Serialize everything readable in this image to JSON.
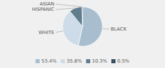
{
  "chart_data": {
    "type": "pie",
    "categories": [
      "BLACK",
      "WHITE",
      "HISPANIC",
      "ASIAN"
    ],
    "values": [
      53.4,
      35.8,
      10.3,
      0.5
    ],
    "value_labels": [
      "53.4%",
      "35.8%",
      "10.3%",
      "0.5%"
    ],
    "colors": [
      "#a8bece",
      "#cddce8",
      "#607d8e",
      "#344f61"
    ],
    "legend": "bottom"
  }
}
